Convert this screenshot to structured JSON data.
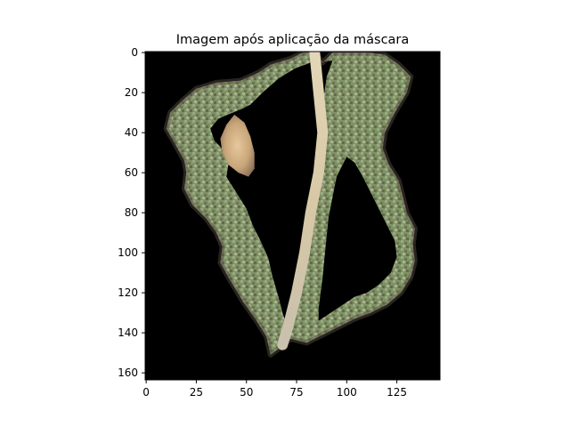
{
  "chart_data": {
    "type": "image",
    "title": "Imagem após aplicação da máscara",
    "xlabel": "",
    "ylabel": "",
    "x_ticks": [
      0,
      25,
      50,
      75,
      100,
      125
    ],
    "y_ticks": [
      0,
      20,
      40,
      60,
      80,
      100,
      120,
      140,
      160
    ],
    "xlim": [
      -0.5,
      146.5
    ],
    "ylim": [
      163.5,
      -0.5
    ],
    "image_width": 147,
    "image_height": 164,
    "grid": false,
    "legend": "none",
    "colors": {
      "background": "#000000",
      "leaf_green": "#6f8a55",
      "leaf_light": "#bdb8a2",
      "leaf_dark": "#5a5048",
      "leaf_tan": "#d2b48c",
      "axis": "#000000"
    },
    "outer_outline": [
      [
        78,
        0
      ],
      [
        72,
        3
      ],
      [
        62,
        6
      ],
      [
        56,
        10
      ],
      [
        47,
        14
      ],
      [
        35,
        15
      ],
      [
        25,
        18
      ],
      [
        18,
        24
      ],
      [
        12,
        30
      ],
      [
        10,
        38
      ],
      [
        14,
        45
      ],
      [
        19,
        54
      ],
      [
        20,
        60
      ],
      [
        19,
        68
      ],
      [
        23,
        76
      ],
      [
        30,
        83
      ],
      [
        35,
        90
      ],
      [
        38,
        97
      ],
      [
        37,
        105
      ],
      [
        42,
        114
      ],
      [
        48,
        124
      ],
      [
        55,
        134
      ],
      [
        60,
        142
      ],
      [
        62,
        151
      ],
      [
        66,
        148
      ],
      [
        72,
        143
      ],
      [
        80,
        145
      ],
      [
        88,
        141
      ],
      [
        96,
        137
      ],
      [
        104,
        133
      ],
      [
        112,
        130
      ],
      [
        120,
        126
      ],
      [
        127,
        120
      ],
      [
        132,
        112
      ],
      [
        134,
        104
      ],
      [
        133,
        96
      ],
      [
        134,
        88
      ],
      [
        130,
        80
      ],
      [
        128,
        72
      ],
      [
        126,
        64
      ],
      [
        121,
        56
      ],
      [
        118,
        48
      ],
      [
        119,
        40
      ],
      [
        124,
        30
      ],
      [
        130,
        20
      ],
      [
        132,
        12
      ],
      [
        126,
        6
      ],
      [
        119,
        1
      ],
      [
        111,
        0
      ],
      [
        93,
        0
      ],
      [
        88,
        5
      ],
      [
        84,
        0
      ]
    ],
    "inner_hole_left": [
      [
        48,
        28
      ],
      [
        36,
        33
      ],
      [
        32,
        38
      ],
      [
        34,
        44
      ],
      [
        39,
        49
      ],
      [
        41,
        56
      ],
      [
        40,
        62
      ],
      [
        45,
        70
      ],
      [
        50,
        78
      ],
      [
        53,
        86
      ],
      [
        57,
        94
      ],
      [
        61,
        103
      ],
      [
        63,
        112
      ],
      [
        66,
        122
      ],
      [
        68,
        130
      ],
      [
        70,
        136
      ],
      [
        74,
        128
      ],
      [
        76,
        118
      ],
      [
        79,
        106
      ],
      [
        80,
        94
      ],
      [
        81,
        82
      ],
      [
        83,
        68
      ],
      [
        84,
        54
      ],
      [
        86,
        40
      ],
      [
        88,
        26
      ],
      [
        90,
        12
      ],
      [
        93,
        4
      ],
      [
        82,
        5
      ],
      [
        74,
        8
      ],
      [
        66,
        13
      ],
      [
        58,
        20
      ],
      [
        52,
        26
      ]
    ],
    "inner_hole_right": [
      [
        100,
        52
      ],
      [
        95,
        62
      ],
      [
        93,
        72
      ],
      [
        91,
        82
      ],
      [
        90,
        92
      ],
      [
        89,
        102
      ],
      [
        88,
        112
      ],
      [
        87,
        120
      ],
      [
        86,
        128
      ],
      [
        86,
        134
      ],
      [
        92,
        130
      ],
      [
        98,
        126
      ],
      [
        104,
        122
      ],
      [
        110,
        120
      ],
      [
        116,
        116
      ],
      [
        122,
        110
      ],
      [
        125,
        102
      ],
      [
        124,
        94
      ],
      [
        120,
        86
      ],
      [
        116,
        78
      ],
      [
        112,
        70
      ],
      [
        108,
        62
      ],
      [
        104,
        55
      ]
    ],
    "vein_line": [
      [
        84,
        0
      ],
      [
        86,
        20
      ],
      [
        88,
        40
      ],
      [
        86,
        60
      ],
      [
        82,
        80
      ],
      [
        79,
        100
      ],
      [
        75,
        120
      ],
      [
        71,
        136
      ],
      [
        68,
        146
      ]
    ],
    "lesion_region": [
      [
        44,
        31
      ],
      [
        40,
        36
      ],
      [
        37,
        43
      ],
      [
        38,
        50
      ],
      [
        41,
        56
      ],
      [
        46,
        60
      ],
      [
        51,
        62
      ],
      [
        54,
        58
      ],
      [
        54,
        50
      ],
      [
        52,
        42
      ],
      [
        49,
        35
      ]
    ]
  }
}
